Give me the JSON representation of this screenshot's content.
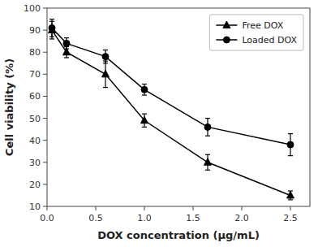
{
  "chart_data": {
    "type": "line",
    "x_label": "DOX concentration (μg/mL)",
    "y_label": "Cell viability (%)",
    "x": [
      0.05,
      0.2,
      0.6,
      1.0,
      1.65,
      2.5
    ],
    "series": [
      {
        "name": "Free DOX",
        "color": "black",
        "marker": "triangle",
        "values": [
          90,
          80,
          70,
          49,
          30,
          15
        ],
        "errors": [
          4,
          2.5,
          6,
          3,
          3.5,
          2
        ]
      },
      {
        "name": "Loaded DOX",
        "color": "black",
        "marker": "circle",
        "values": [
          91,
          84,
          78,
          63,
          46,
          38
        ],
        "errors": [
          4,
          2.5,
          3,
          2.5,
          4,
          5
        ]
      }
    ],
    "xlim": [
      0.0,
      2.7
    ],
    "ylim": [
      10,
      100
    ],
    "xticks": [
      {
        "value": 0.0,
        "label": "0.0"
      },
      0.5,
      {
        "value": 1.0,
        "label": "1.0"
      },
      {
        "value": 1.5,
        "label": "1.5"
      },
      {
        "value": 2.0,
        "label": "2.0"
      },
      2.5
    ],
    "yticks": [
      10,
      20,
      30,
      40,
      50,
      60,
      70,
      80,
      90,
      100
    ],
    "grid": false,
    "legend": "upper right"
  }
}
